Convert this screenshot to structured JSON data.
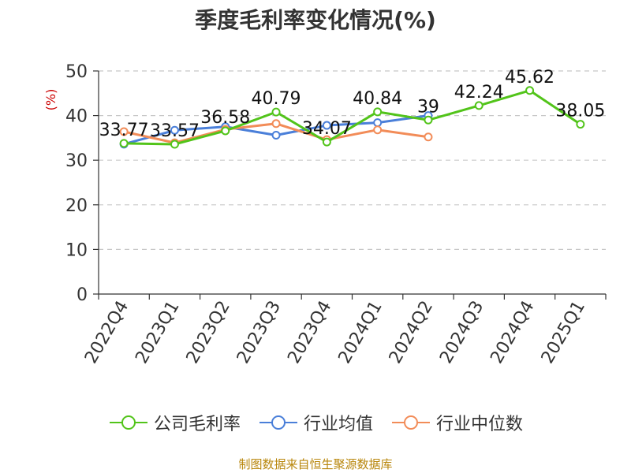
{
  "chart_data": {
    "type": "line",
    "title": "季度毛利率变化情况(%)",
    "ylabel": "(%)",
    "ylim": [
      0,
      50
    ],
    "yticks": [
      0,
      10,
      20,
      30,
      40,
      50
    ],
    "categories": [
      "2022Q4",
      "2023Q1",
      "2023Q2",
      "2023Q3",
      "2023Q4",
      "2024Q1",
      "2024Q2",
      "2024Q3",
      "2024Q4",
      "2025Q1"
    ],
    "grid": true,
    "legend_position": "bottom",
    "series": [
      {
        "name": "公司毛利率",
        "color": "#52c41a",
        "values": [
          33.77,
          33.57,
          36.58,
          40.79,
          34.07,
          40.84,
          39,
          42.24,
          45.62,
          38.05
        ],
        "labels": [
          "33.77",
          "33.57",
          "36.58",
          "40.79",
          "34.07",
          "40.84",
          "39",
          "42.24",
          "45.62",
          "38.05"
        ]
      },
      {
        "name": "行业均值",
        "color": "#4a7fd9",
        "values": [
          33.6,
          36.7,
          37.5,
          35.6,
          37.8,
          38.4,
          40.0,
          null,
          null,
          null
        ]
      },
      {
        "name": "行业中位数",
        "color": "#f28c58",
        "values": [
          36.4,
          33.9,
          36.9,
          38.2,
          34.6,
          36.8,
          35.2,
          null,
          null,
          null
        ]
      }
    ]
  },
  "footer": "制图数据来自恒生聚源数据库"
}
